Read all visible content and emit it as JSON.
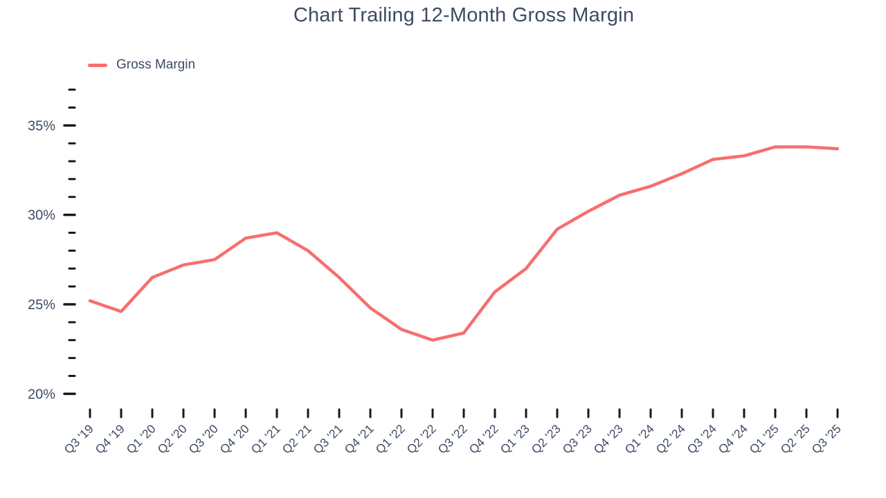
{
  "title": "Chart Trailing 12-Month Gross Margin",
  "legend": {
    "label": "Gross Margin",
    "position": "top-left"
  },
  "colors": {
    "line": "#f76e6e",
    "text": "#3e4b64",
    "axis_tick": "#16181d",
    "background": "#ffffff"
  },
  "chart_data": {
    "type": "line",
    "title": "Chart Trailing 12-Month Gross Margin",
    "categories": [
      "Q3 '19",
      "Q4 '19",
      "Q1 '20",
      "Q2 '20",
      "Q3 '20",
      "Q4 '20",
      "Q1 '21",
      "Q2 '21",
      "Q3 '21",
      "Q4 '21",
      "Q1 '22",
      "Q2 '22",
      "Q3 '22",
      "Q4 '22",
      "Q1 '23",
      "Q2 '23",
      "Q3 '23",
      "Q4 '23",
      "Q1 '24",
      "Q2 '24",
      "Q3 '24",
      "Q4 '24",
      "Q1 '25",
      "Q2 '25",
      "Q3 '25"
    ],
    "series": [
      {
        "name": "Gross Margin",
        "values": [
          25.2,
          24.6,
          26.5,
          27.2,
          27.5,
          28.7,
          29.0,
          28.0,
          26.5,
          24.8,
          23.6,
          23.0,
          23.4,
          25.7,
          27.0,
          29.2,
          30.2,
          31.1,
          31.6,
          32.3,
          33.1,
          33.3,
          33.8,
          33.8,
          33.7
        ]
      }
    ],
    "xlabel": "",
    "ylabel": "",
    "ylim": [
      20,
      37
    ],
    "y_major_ticks": [
      20,
      25,
      30,
      35
    ],
    "y_minor_tick_step": 1,
    "y_tick_suffix": "%",
    "grid": false,
    "legend_position": "top-left",
    "x_tick_label_rotation": -45
  }
}
